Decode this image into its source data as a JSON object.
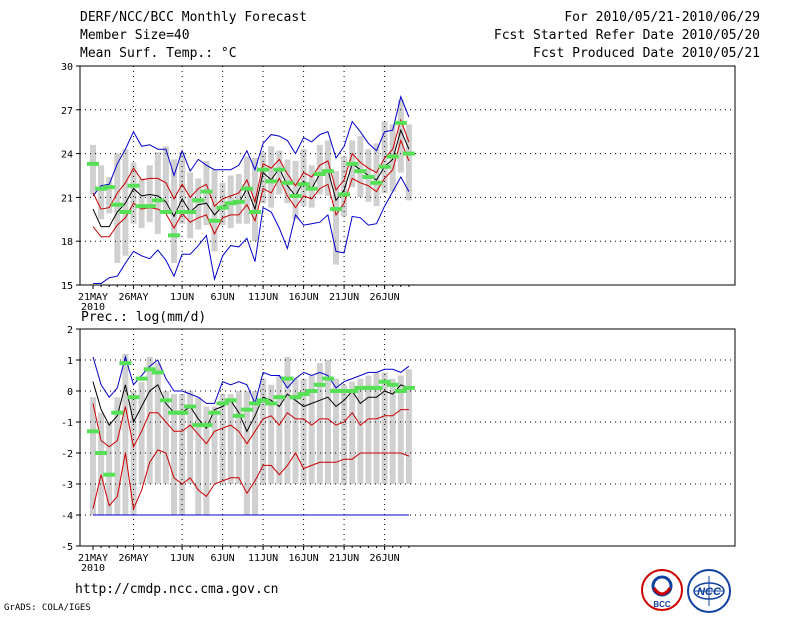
{
  "header": {
    "title": "DERF/NCC/BCC Monthly Forecast",
    "member_size": "Member Size=40",
    "variable1": "Mean Surf. Temp.: °C",
    "period": "For 2010/05/21-2010/06/29",
    "started": "Fcst Started Refer Date 2010/05/20",
    "produced": "Fcst Produced Date 2010/05/21"
  },
  "footer": {
    "url": "http://cmdp.ncc.cma.gov.cn",
    "grads": "GrADS: COLA/IGES",
    "logo_bcc": "BCC",
    "logo_ncc": "NCC"
  },
  "colors": {
    "max": "#0000cc",
    "pct": "#cc0000",
    "mean": "#000000",
    "obs": "#55e055",
    "box": "#d0d0d0",
    "grid": "#000000"
  },
  "chart_data": [
    {
      "type": "line",
      "title": "Mean Surf. Temp.: °C",
      "ylim": [
        15,
        30
      ],
      "yticks": [
        "15",
        "18",
        "21",
        "24",
        "27",
        "30"
      ],
      "xticks": [
        {
          "day": 0,
          "label": "21MAY",
          "sub": "2010"
        },
        {
          "day": 5,
          "label": "26MAY"
        },
        {
          "day": 11,
          "label": "1JUN"
        },
        {
          "day": 16,
          "label": "6JUN"
        },
        {
          "day": 21,
          "label": "11JUN"
        },
        {
          "day": 26,
          "label": "16JUN"
        },
        {
          "day": 31,
          "label": "21JUN"
        },
        {
          "day": 36,
          "label": "26JUN"
        }
      ],
      "max": [
        15.1,
        15.1,
        15.5,
        15.6,
        16.5,
        17.3,
        17.0,
        16.8,
        17.4,
        16.7,
        15.6,
        17.1,
        17.1,
        17.7,
        18.4,
        15.4,
        17.0,
        17.7,
        17.6,
        18.2,
        16.6,
        20.3,
        20.0,
        18.9,
        17.5,
        19.8,
        19.1,
        19.2,
        19.3,
        19.8,
        17.3,
        17.2,
        19.7,
        19.6,
        19.1,
        19.2,
        20.4,
        21.4,
        22.4,
        21.4
      ],
      "p90": [
        21.1,
        21.8,
        21.9,
        23.3,
        24.3,
        25.5,
        24.5,
        24.6,
        24.3,
        24.3,
        22.5,
        24.2,
        22.8,
        23.6,
        23.2,
        22.9,
        22.9,
        22.9,
        23.2,
        24.2,
        22.9,
        24.7,
        25.3,
        25.2,
        24.9,
        24.0,
        25.1,
        24.8,
        25.3,
        25.5,
        23.7,
        24.5,
        26.2,
        25.5,
        24.7,
        24.2,
        25.5,
        25.6,
        27.9,
        26.5
      ],
      "p75": [
        21.3,
        20.2,
        20.3,
        21.3,
        22.0,
        23.0,
        22.2,
        22.3,
        22.3,
        22.0,
        20.9,
        21.9,
        21.0,
        21.6,
        21.9,
        20.4,
        20.9,
        21.1,
        21.3,
        22.2,
        20.7,
        23.3,
        23.0,
        23.6,
        22.6,
        21.8,
        22.7,
        22.4,
        23.2,
        23.5,
        21.5,
        22.2,
        24.0,
        23.4,
        23.0,
        22.7,
        23.7,
        24.3,
        26.3,
        24.8
      ],
      "mean": [
        20.2,
        19.0,
        19.0,
        20.0,
        20.6,
        21.6,
        21.1,
        21.2,
        21.1,
        20.7,
        19.7,
        20.9,
        20.0,
        20.5,
        20.6,
        19.8,
        20.4,
        20.6,
        20.6,
        21.6,
        20.2,
        22.7,
        22.2,
        23.0,
        21.8,
        21.1,
        22.1,
        21.6,
        22.6,
        22.9,
        20.8,
        21.5,
        23.3,
        22.9,
        22.5,
        22.2,
        23.1,
        23.6,
        25.6,
        24.3
      ],
      "p25": [
        19.0,
        18.3,
        18.3,
        19.1,
        19.6,
        20.6,
        20.2,
        20.3,
        20.2,
        19.9,
        18.9,
        19.9,
        19.3,
        19.6,
        19.8,
        18.5,
        19.6,
        19.8,
        19.8,
        20.5,
        19.4,
        21.6,
        21.3,
        22.3,
        21.1,
        20.3,
        21.1,
        20.9,
        21.6,
        21.9,
        19.8,
        20.6,
        22.3,
        22.0,
        21.8,
        21.4,
        22.3,
        22.9,
        24.9,
        23.5
      ],
      "obs": [
        23.3,
        21.6,
        21.7,
        20.5,
        20.0,
        21.8,
        20.4,
        20.4,
        20.8,
        20.0,
        18.4,
        20.0,
        20.0,
        20.8,
        21.4,
        19.4,
        20.3,
        20.6,
        20.7,
        21.6,
        20.0,
        22.9,
        22.1,
        22.9,
        22.0,
        21.1,
        21.9,
        21.6,
        22.6,
        22.8,
        20.2,
        21.2,
        23.3,
        22.8,
        22.4,
        22.0,
        23.1,
        23.8,
        26.1,
        24.0
      ],
      "box_low": [
        21.2,
        19.5,
        19.9,
        16.5,
        17.0,
        19.2,
        18.9,
        19.3,
        18.5,
        19.9,
        16.5,
        19.2,
        18.2,
        18.8,
        19.1,
        17.3,
        19.1,
        18.9,
        19.2,
        19.2,
        18.0,
        20.6,
        20.3,
        21.2,
        20.6,
        19.5,
        20.4,
        20.3,
        21.2,
        21.1,
        16.4,
        19.7,
        21.7,
        21.0,
        20.7,
        20.4,
        21.3,
        21.4,
        22.7,
        20.8
      ],
      "box_high": [
        24.6,
        23.2,
        22.4,
        24.0,
        24.3,
        23.4,
        22.3,
        23.2,
        24.1,
        24.5,
        23.6,
        24.1,
        22.7,
        22.3,
        23.5,
        22.9,
        22.0,
        22.5,
        22.6,
        23.8,
        23.7,
        24.1,
        24.5,
        24.2,
        23.6,
        23.5,
        24.3,
        23.2,
        24.6,
        24.9,
        22.8,
        23.8,
        24.9,
        25.2,
        24.3,
        24.7,
        26.2,
        26.0,
        27.7,
        26.0
      ]
    },
    {
      "type": "line",
      "title": "Prec.: log(mm/d)",
      "ylim": [
        -5,
        2
      ],
      "yticks": [
        "-5",
        "-4",
        "-3",
        "-2",
        "-1",
        "0",
        "1",
        "2"
      ],
      "xticks": [
        {
          "day": 0,
          "label": "21MAY",
          "sub": "2010"
        },
        {
          "day": 5,
          "label": "26MAY"
        },
        {
          "day": 11,
          "label": "1JUN"
        },
        {
          "day": 16,
          "label": "6JUN"
        },
        {
          "day": 21,
          "label": "11JUN"
        },
        {
          "day": 26,
          "label": "16JUN"
        },
        {
          "day": 31,
          "label": "21JUN"
        },
        {
          "day": 36,
          "label": "26JUN"
        }
      ],
      "floor": -4,
      "max": [
        1.1,
        0.2,
        -0.2,
        0.1,
        1.1,
        0.2,
        0.5,
        0.8,
        1.0,
        0.4,
        0.0,
        0.0,
        -0.1,
        -0.2,
        -0.4,
        -0.4,
        0.3,
        0.2,
        0.3,
        0.2,
        -0.4,
        0.6,
        0.5,
        0.5,
        0.1,
        0.4,
        0.6,
        0.5,
        0.6,
        0.5,
        0.1,
        0.3,
        0.4,
        0.5,
        0.6,
        0.6,
        0.7,
        0.7,
        0.6,
        0.8
      ],
      "mean": [
        0.3,
        -0.6,
        -1.1,
        -0.8,
        0.2,
        -1.0,
        -0.5,
        0.0,
        0.2,
        -0.4,
        -0.7,
        -0.7,
        -0.5,
        -0.9,
        -1.2,
        -0.6,
        -0.5,
        -0.3,
        -0.7,
        -1.3,
        -0.8,
        -0.2,
        -0.3,
        -0.5,
        -0.1,
        -0.3,
        -0.5,
        -0.4,
        -0.3,
        -0.2,
        -0.5,
        -0.3,
        0.0,
        -0.4,
        -0.2,
        -0.2,
        0.0,
        -0.1,
        0.2,
        0.1
      ],
      "p75": [
        -0.4,
        -1.6,
        -1.8,
        -1.6,
        -0.5,
        -1.8,
        -1.3,
        -0.7,
        -0.7,
        -1.0,
        -1.3,
        -1.3,
        -1.1,
        -1.4,
        -1.7,
        -1.3,
        -1.2,
        -1.1,
        -1.3,
        -1.7,
        -1.3,
        -0.9,
        -0.8,
        -1.1,
        -0.7,
        -0.9,
        -0.9,
        -1.1,
        -0.9,
        -0.9,
        -1.1,
        -1.0,
        -0.7,
        -1.1,
        -0.9,
        -0.9,
        -0.8,
        -0.8,
        -0.6,
        -0.6
      ],
      "p50": [
        -3.8,
        -2.7,
        -3.7,
        -3.4,
        -2.0,
        -3.8,
        -3.2,
        -2.3,
        -1.9,
        -2.0,
        -2.8,
        -3.0,
        -2.8,
        -3.2,
        -3.4,
        -3.0,
        -2.9,
        -2.8,
        -2.8,
        -3.3,
        -2.9,
        -2.4,
        -2.4,
        -2.7,
        -2.4,
        -2.0,
        -2.5,
        -2.4,
        -2.3,
        -2.3,
        -2.3,
        -2.2,
        -2.2,
        -2.0,
        -2.0,
        -2.0,
        -2.0,
        -2.0,
        -2.0,
        -2.1
      ],
      "obs": [
        -1.3,
        -2.0,
        -2.7,
        -0.7,
        0.9,
        -0.2,
        0.4,
        0.7,
        0.6,
        -0.3,
        -0.7,
        -0.7,
        -0.5,
        -1.1,
        -1.1,
        -0.7,
        -0.4,
        -0.3,
        -0.8,
        -0.6,
        -0.4,
        -0.3,
        -0.4,
        -0.2,
        0.4,
        -0.2,
        -0.1,
        0.0,
        0.2,
        0.4,
        0.0,
        0.0,
        0.0,
        0.1,
        0.1,
        0.1,
        0.3,
        0.2,
        0.0,
        0.1
      ],
      "box_low": [
        -4,
        -4,
        -4,
        -4,
        -4,
        -4,
        -3,
        -3,
        -3,
        -3,
        -4,
        -4,
        -3,
        -4,
        -4,
        -3,
        -3,
        -3,
        -3,
        -4,
        -4,
        -3,
        -3,
        -3,
        -3,
        -3,
        -3,
        -3,
        -3,
        -3,
        -3,
        -3,
        -3,
        -3,
        -3,
        -3,
        -3,
        -3,
        -3,
        -3
      ],
      "box_high": [
        -0.2,
        -0.7,
        -1.0,
        -0.2,
        1.2,
        0.0,
        0.3,
        1.1,
        0.9,
        0.0,
        -0.1,
        -0.1,
        0.0,
        -0.2,
        -0.5,
        -0.5,
        -0.1,
        -0.1,
        0.0,
        0.0,
        0.0,
        0.4,
        0.2,
        0.5,
        1.1,
        0.4,
        0.4,
        0.5,
        0.9,
        1.0,
        0.4,
        0.2,
        0.3,
        0.4,
        0.5,
        0.6,
        0.6,
        0.4,
        0.5,
        0.7
      ]
    }
  ]
}
